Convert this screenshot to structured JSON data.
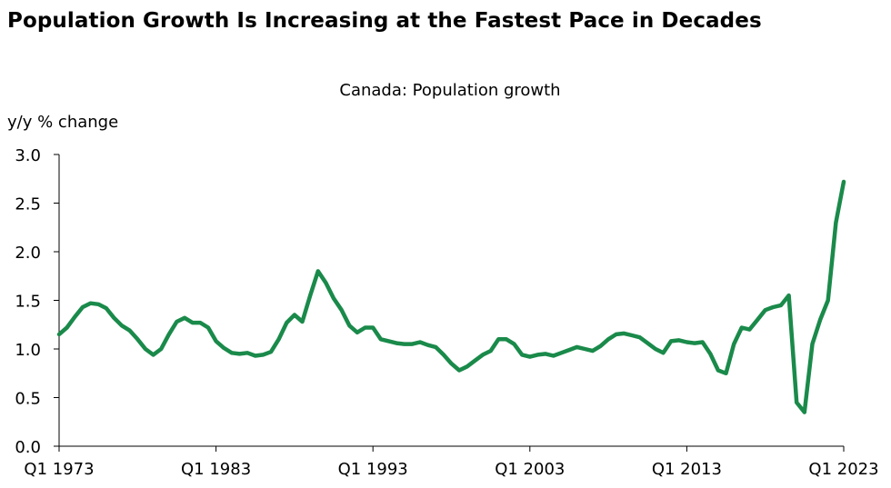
{
  "title": "Population Growth Is Increasing at the Fastest Pace in Decades",
  "chart_data": {
    "type": "line",
    "title": "Canada: Population growth",
    "ylabel": "y/y % change",
    "xlabel": "",
    "ylim": [
      0.0,
      3.0
    ],
    "yticks": [
      "0.0",
      "0.5",
      "1.0",
      "1.5",
      "2.0",
      "2.5",
      "3.0"
    ],
    "xlim": [
      1973.0,
      2023.0
    ],
    "xticks": [
      "Q1 1973",
      "Q1 1983",
      "Q1 1993",
      "Q1 2003",
      "Q1 2013",
      "Q1 2023"
    ],
    "grid": false,
    "legend": "none",
    "line_color": "#1a8a4a",
    "series": [
      {
        "x": [
          1973.0,
          1973.5,
          1974.0,
          1974.5,
          1975.0,
          1975.5,
          1976.0,
          1976.5,
          1977.0,
          1977.5,
          1978.0,
          1978.5,
          1979.0,
          1979.5,
          1980.0,
          1980.5,
          1981.0,
          1981.5,
          1982.0,
          1982.5,
          1983.0,
          1983.5,
          1984.0,
          1984.5,
          1985.0,
          1985.5,
          1986.0,
          1986.5,
          1987.0,
          1987.5,
          1988.0,
          1988.5,
          1989.0,
          1989.5,
          1990.0,
          1990.5,
          1991.0,
          1991.5,
          1992.0,
          1992.5,
          1993.0,
          1993.5,
          1994.0,
          1994.5,
          1995.0,
          1995.5,
          1996.0,
          1996.5,
          1997.0,
          1997.5,
          1998.0,
          1998.5,
          1999.0,
          1999.5,
          2000.0,
          2000.5,
          2001.0,
          2001.5,
          2002.0,
          2002.5,
          2003.0,
          2003.5,
          2004.0,
          2004.5,
          2005.0,
          2005.5,
          2006.0,
          2006.5,
          2007.0,
          2007.5,
          2008.0,
          2008.5,
          2009.0,
          2009.5,
          2010.0,
          2010.5,
          2011.0,
          2011.5,
          2012.0,
          2012.5,
          2013.0,
          2013.5,
          2014.0,
          2014.5,
          2015.0,
          2015.5,
          2016.0,
          2016.5,
          2017.0,
          2017.5,
          2018.0,
          2018.5,
          2019.0,
          2019.5,
          2020.0,
          2020.5,
          2021.0,
          2021.5,
          2022.0,
          2022.5,
          2023.0
        ],
        "y": [
          1.15,
          1.22,
          1.33,
          1.43,
          1.47,
          1.46,
          1.42,
          1.32,
          1.24,
          1.19,
          1.1,
          1.0,
          0.94,
          1.0,
          1.15,
          1.28,
          1.32,
          1.27,
          1.27,
          1.22,
          1.08,
          1.01,
          0.96,
          0.95,
          0.96,
          0.93,
          0.94,
          0.97,
          1.1,
          1.27,
          1.35,
          1.28,
          1.55,
          1.8,
          1.68,
          1.52,
          1.4,
          1.24,
          1.17,
          1.22,
          1.22,
          1.1,
          1.08,
          1.06,
          1.05,
          1.05,
          1.07,
          1.04,
          1.02,
          0.94,
          0.85,
          0.78,
          0.82,
          0.88,
          0.94,
          0.98,
          1.1,
          1.1,
          1.05,
          0.94,
          0.92,
          0.94,
          0.95,
          0.93,
          0.96,
          0.99,
          1.02,
          1.0,
          0.98,
          1.03,
          1.1,
          1.15,
          1.16,
          1.14,
          1.12,
          1.06,
          1.0,
          0.96,
          1.08,
          1.09,
          1.07,
          1.06,
          1.07,
          0.95,
          0.78,
          0.75,
          1.05,
          1.22,
          1.2,
          1.3,
          1.4,
          1.43,
          1.45,
          1.55,
          0.45,
          0.35,
          1.05,
          1.3,
          1.5,
          2.3,
          2.72
        ]
      }
    ]
  }
}
